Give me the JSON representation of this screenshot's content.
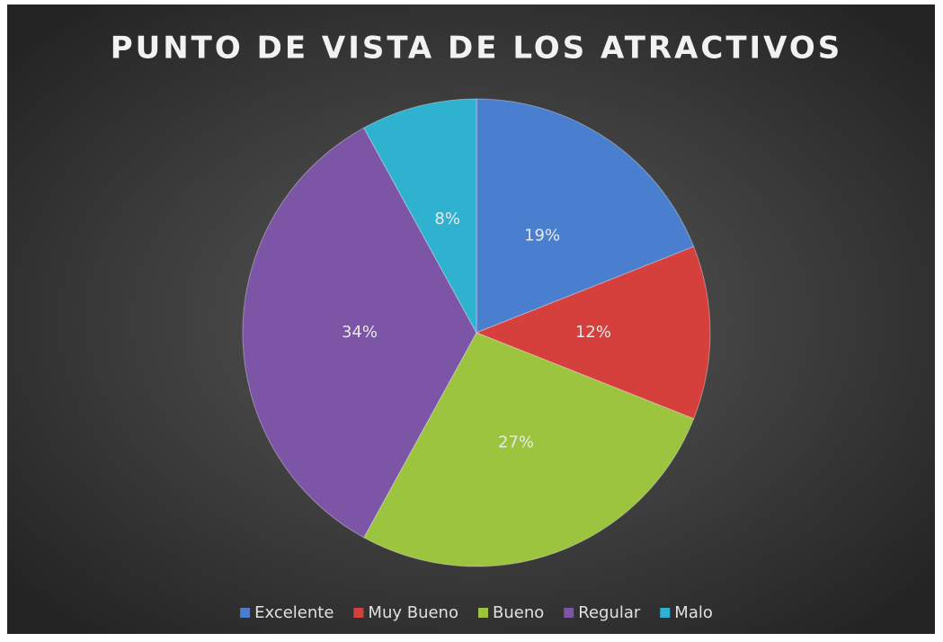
{
  "chart_data": {
    "type": "pie",
    "title": "PUNTO DE VISTA DE LOS ATRACTIVOS",
    "categories": [
      "Excelente",
      "Muy Bueno",
      "Bueno",
      "Regular",
      "Malo"
    ],
    "values": [
      19,
      12,
      27,
      34,
      8
    ],
    "value_labels": [
      "19%",
      "12%",
      "27%",
      "34%",
      "8%"
    ],
    "colors": [
      "#4a7fd0",
      "#d5403d",
      "#9cc43e",
      "#7c55a6",
      "#2fb2cf"
    ],
    "legend": "bottom"
  }
}
